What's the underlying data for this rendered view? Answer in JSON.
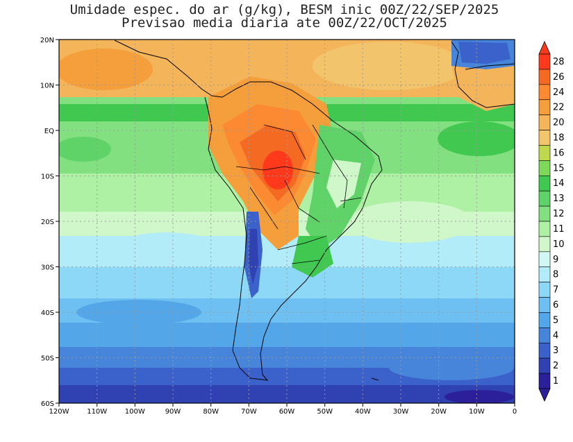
{
  "title": {
    "line1": "Umidade espec. do ar (g/kg), BESM inic 00Z/22/SEP/2025",
    "line2": "Previsao media diaria ate 00Z/22/OCT/2025"
  },
  "axes": {
    "lon_labels": [
      "120W",
      "110W",
      "100W",
      "90W",
      "80W",
      "70W",
      "60W",
      "50W",
      "40W",
      "30W",
      "20W",
      "10W",
      "0"
    ],
    "lat_labels": [
      "20N",
      "10N",
      "EQ",
      "10S",
      "20S",
      "30S",
      "40S",
      "50S",
      "60S"
    ]
  },
  "colorbar": {
    "labels": [
      "28",
      "26",
      "24",
      "22",
      "20",
      "18",
      "16",
      "15",
      "14",
      "13",
      "12",
      "11",
      "10",
      "9",
      "8",
      "7",
      "6",
      "5",
      "4",
      "3",
      "2",
      "1"
    ],
    "colors": [
      "#ff3a1c",
      "#f56a22",
      "#fb8a33",
      "#f49e3c",
      "#f4b55a",
      "#f2c46c",
      "#c0d84e",
      "#7ed85a",
      "#40c850",
      "#60d368",
      "#82e081",
      "#aef1a4",
      "#d0f7c9",
      "#d2f8f5",
      "#b2ecf8",
      "#8ed8f7",
      "#6dc0f1",
      "#53a6e8",
      "#4685d9",
      "#3a62ca",
      "#3041b1",
      "#2c209a"
    ]
  }
}
